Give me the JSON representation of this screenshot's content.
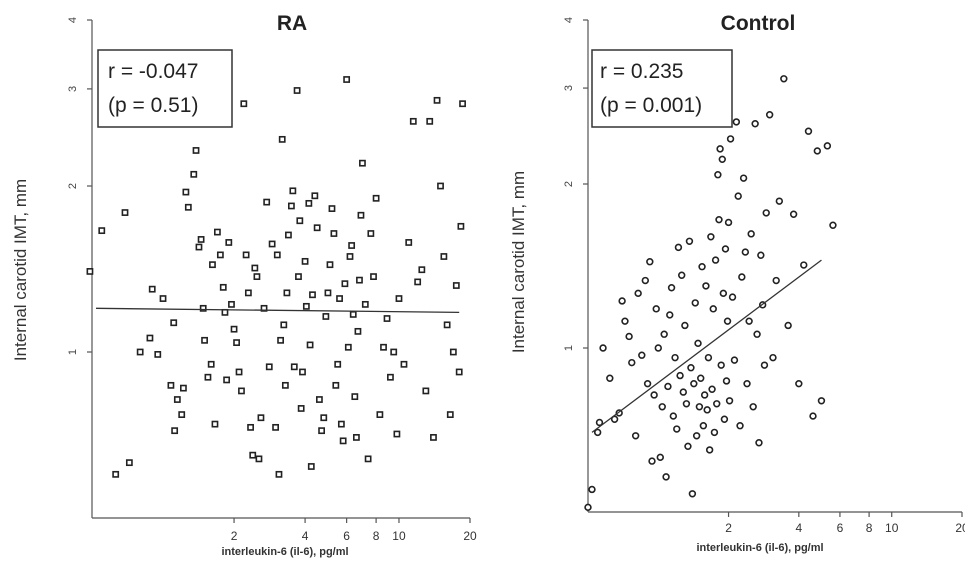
{
  "chart_data": [
    {
      "type": "scatter",
      "title": "RA",
      "xlabel": "interleukin-6 (il-6), pg/ml",
      "ylabel": "Internal carotid IMT, mm",
      "x_scale": "log",
      "y_scale": "log",
      "xlim": [
        0.5,
        20
      ],
      "ylim": [
        0.5,
        4
      ],
      "x_ticks": [
        2,
        4,
        6,
        8,
        10,
        20
      ],
      "x_tick_labels": [
        "2",
        "4",
        "6",
        "8",
        "10",
        "20"
      ],
      "y_ticks": [
        1,
        2,
        3,
        4
      ],
      "y_tick_labels": [
        "1",
        "2",
        "3",
        "4"
      ],
      "annotation": [
        "r = -0.047",
        "(p = 0.51)"
      ],
      "marker": "square",
      "fit_line": {
        "x": [
          0.52,
          18
        ],
        "y": [
          1.2,
          1.18
        ]
      },
      "points": [
        [
          0.49,
          1.4
        ],
        [
          0.55,
          1.66
        ],
        [
          0.69,
          1.79
        ],
        [
          0.63,
          0.6
        ],
        [
          0.72,
          0.63
        ],
        [
          0.8,
          1.0
        ],
        [
          0.9,
          1.3
        ],
        [
          0.88,
          1.06
        ],
        [
          0.95,
          0.99
        ],
        [
          1.0,
          1.25
        ],
        [
          1.08,
          0.87
        ],
        [
          1.11,
          1.13
        ],
        [
          1.15,
          0.82
        ],
        [
          1.12,
          0.72
        ],
        [
          1.2,
          0.77
        ],
        [
          1.22,
          0.86
        ],
        [
          1.25,
          1.95
        ],
        [
          1.28,
          1.83
        ],
        [
          1.35,
          2.1
        ],
        [
          1.38,
          2.32
        ],
        [
          1.42,
          1.55
        ],
        [
          1.45,
          1.6
        ],
        [
          1.48,
          1.2
        ],
        [
          1.5,
          1.05
        ],
        [
          1.55,
          0.9
        ],
        [
          1.6,
          0.95
        ],
        [
          1.62,
          1.44
        ],
        [
          1.66,
          0.74
        ],
        [
          1.7,
          1.65
        ],
        [
          1.75,
          1.5
        ],
        [
          1.8,
          1.31
        ],
        [
          1.83,
          1.18
        ],
        [
          1.86,
          0.89
        ],
        [
          1.9,
          1.58
        ],
        [
          1.95,
          1.22
        ],
        [
          2.0,
          1.1
        ],
        [
          2.05,
          1.04
        ],
        [
          2.1,
          0.92
        ],
        [
          2.15,
          0.85
        ],
        [
          2.2,
          2.82
        ],
        [
          2.25,
          1.5
        ],
        [
          2.3,
          1.28
        ],
        [
          2.35,
          0.73
        ],
        [
          2.4,
          0.65
        ],
        [
          2.45,
          1.42
        ],
        [
          2.5,
          1.37
        ],
        [
          2.55,
          0.64
        ],
        [
          2.6,
          0.76
        ],
        [
          2.68,
          1.2
        ],
        [
          2.75,
          1.87
        ],
        [
          2.82,
          0.94
        ],
        [
          2.9,
          1.57
        ],
        [
          3.0,
          0.73
        ],
        [
          3.05,
          1.5
        ],
        [
          3.1,
          0.6
        ],
        [
          3.15,
          1.05
        ],
        [
          3.2,
          2.43
        ],
        [
          3.25,
          1.12
        ],
        [
          3.3,
          0.87
        ],
        [
          3.35,
          1.28
        ],
        [
          3.4,
          1.63
        ],
        [
          3.5,
          1.84
        ],
        [
          3.55,
          1.96
        ],
        [
          3.6,
          0.94
        ],
        [
          3.7,
          2.98
        ],
        [
          3.75,
          1.37
        ],
        [
          3.8,
          1.73
        ],
        [
          3.85,
          0.79
        ],
        [
          3.9,
          0.92
        ],
        [
          4.0,
          1.46
        ],
        [
          4.05,
          1.21
        ],
        [
          4.15,
          1.86
        ],
        [
          4.2,
          1.03
        ],
        [
          4.25,
          0.62
        ],
        [
          4.3,
          1.27
        ],
        [
          4.4,
          1.92
        ],
        [
          4.5,
          1.68
        ],
        [
          4.6,
          0.82
        ],
        [
          4.7,
          0.72
        ],
        [
          4.8,
          0.76
        ],
        [
          4.9,
          1.16
        ],
        [
          5.0,
          1.28
        ],
        [
          5.1,
          1.44
        ],
        [
          5.2,
          1.82
        ],
        [
          5.3,
          1.64
        ],
        [
          5.4,
          0.87
        ],
        [
          5.5,
          0.95
        ],
        [
          5.6,
          1.25
        ],
        [
          5.7,
          0.74
        ],
        [
          5.8,
          0.69
        ],
        [
          5.9,
          1.33
        ],
        [
          6.0,
          3.12
        ],
        [
          6.1,
          1.02
        ],
        [
          6.2,
          1.49
        ],
        [
          6.3,
          1.56
        ],
        [
          6.4,
          1.17
        ],
        [
          6.5,
          0.83
        ],
        [
          6.6,
          0.7
        ],
        [
          6.7,
          1.09
        ],
        [
          6.8,
          1.35
        ],
        [
          6.9,
          1.77
        ],
        [
          7.0,
          2.2
        ],
        [
          7.2,
          1.22
        ],
        [
          7.4,
          0.64
        ],
        [
          7.6,
          1.64
        ],
        [
          7.8,
          1.37
        ],
        [
          8.0,
          1.9
        ],
        [
          8.3,
          0.77
        ],
        [
          8.6,
          1.02
        ],
        [
          8.9,
          1.15
        ],
        [
          9.2,
          0.9
        ],
        [
          9.5,
          1.0
        ],
        [
          9.8,
          0.71
        ],
        [
          10.0,
          1.25
        ],
        [
          10.5,
          0.95
        ],
        [
          11.0,
          1.58
        ],
        [
          11.5,
          2.62
        ],
        [
          12.0,
          1.34
        ],
        [
          12.5,
          1.41
        ],
        [
          13.0,
          0.85
        ],
        [
          13.5,
          2.62
        ],
        [
          14.0,
          0.7
        ],
        [
          14.5,
          2.86
        ],
        [
          15.0,
          2.0
        ],
        [
          15.5,
          1.49
        ],
        [
          16.0,
          1.12
        ],
        [
          16.5,
          0.77
        ],
        [
          17.0,
          1.0
        ],
        [
          17.5,
          1.32
        ],
        [
          18.0,
          0.92
        ],
        [
          18.3,
          1.69
        ],
        [
          18.6,
          2.82
        ]
      ]
    },
    {
      "type": "scatter",
      "title": "Control",
      "xlabel": "interleukin-6 (il-6), pg/ml",
      "ylabel": "Internal carotid IMT, mm",
      "x_scale": "log",
      "y_scale": "log",
      "xlim": [
        0.5,
        20
      ],
      "ylim": [
        0.5,
        4
      ],
      "x_ticks": [
        2,
        4,
        6,
        8,
        10,
        20
      ],
      "x_tick_labels": [
        "2",
        "4",
        "6",
        "8",
        "10",
        "20"
      ],
      "y_ticks": [
        1,
        2,
        3,
        4
      ],
      "y_tick_labels": [
        "1",
        "2",
        "3",
        "4"
      ],
      "annotation": [
        "r = 0.235",
        "(p = 0.001)"
      ],
      "marker": "circle",
      "fit_line": {
        "x": [
          0.52,
          5.0
        ],
        "y": [
          0.7,
          1.45
        ]
      },
      "points": [
        [
          0.5,
          0.51
        ],
        [
          0.52,
          0.55
        ],
        [
          0.55,
          0.7
        ],
        [
          0.56,
          0.73
        ],
        [
          0.58,
          1.0
        ],
        [
          0.62,
          0.88
        ],
        [
          0.65,
          0.74
        ],
        [
          0.68,
          0.76
        ],
        [
          0.7,
          1.22
        ],
        [
          0.72,
          1.12
        ],
        [
          0.75,
          1.05
        ],
        [
          0.77,
          0.94
        ],
        [
          0.8,
          0.69
        ],
        [
          0.82,
          1.26
        ],
        [
          0.85,
          0.97
        ],
        [
          0.88,
          1.33
        ],
        [
          0.9,
          0.86
        ],
        [
          0.92,
          1.44
        ],
        [
          0.94,
          0.62
        ],
        [
          0.96,
          0.82
        ],
        [
          0.98,
          1.18
        ],
        [
          1.0,
          1.0
        ],
        [
          1.02,
          0.63
        ],
        [
          1.04,
          0.78
        ],
        [
          1.06,
          1.06
        ],
        [
          1.08,
          0.58
        ],
        [
          1.1,
          0.85
        ],
        [
          1.12,
          1.15
        ],
        [
          1.14,
          1.29
        ],
        [
          1.16,
          0.75
        ],
        [
          1.18,
          0.96
        ],
        [
          1.2,
          0.71
        ],
        [
          1.22,
          1.53
        ],
        [
          1.24,
          0.89
        ],
        [
          1.26,
          1.36
        ],
        [
          1.28,
          0.83
        ],
        [
          1.3,
          1.1
        ],
        [
          1.32,
          0.79
        ],
        [
          1.34,
          0.66
        ],
        [
          1.36,
          1.57
        ],
        [
          1.38,
          0.92
        ],
        [
          1.4,
          0.54
        ],
        [
          1.42,
          0.86
        ],
        [
          1.44,
          1.21
        ],
        [
          1.46,
          0.69
        ],
        [
          1.48,
          1.02
        ],
        [
          1.5,
          0.78
        ],
        [
          1.52,
          0.88
        ],
        [
          1.54,
          1.41
        ],
        [
          1.56,
          0.72
        ],
        [
          1.58,
          0.82
        ],
        [
          1.6,
          1.3
        ],
        [
          1.62,
          0.77
        ],
        [
          1.64,
          0.96
        ],
        [
          1.66,
          0.65
        ],
        [
          1.68,
          1.6
        ],
        [
          1.7,
          0.84
        ],
        [
          1.72,
          1.18
        ],
        [
          1.74,
          0.7
        ],
        [
          1.76,
          1.45
        ],
        [
          1.78,
          0.79
        ],
        [
          1.8,
          2.08
        ],
        [
          1.82,
          1.72
        ],
        [
          1.84,
          2.32
        ],
        [
          1.86,
          0.93
        ],
        [
          1.88,
          2.22
        ],
        [
          1.9,
          1.26
        ],
        [
          1.92,
          0.74
        ],
        [
          1.94,
          1.52
        ],
        [
          1.96,
          0.87
        ],
        [
          1.98,
          1.12
        ],
        [
          2.0,
          1.7
        ],
        [
          2.02,
          0.8
        ],
        [
          2.04,
          2.42
        ],
        [
          2.08,
          1.24
        ],
        [
          2.12,
          0.95
        ],
        [
          2.16,
          2.6
        ],
        [
          2.2,
          1.9
        ],
        [
          2.24,
          0.72
        ],
        [
          2.28,
          1.35
        ],
        [
          2.32,
          2.05
        ],
        [
          2.36,
          1.5
        ],
        [
          2.4,
          0.86
        ],
        [
          2.45,
          1.12
        ],
        [
          2.5,
          1.62
        ],
        [
          2.55,
          0.78
        ],
        [
          2.6,
          2.58
        ],
        [
          2.65,
          1.06
        ],
        [
          2.7,
          0.67
        ],
        [
          2.75,
          1.48
        ],
        [
          2.8,
          1.2
        ],
        [
          2.85,
          0.93
        ],
        [
          2.9,
          1.77
        ],
        [
          3.0,
          2.68
        ],
        [
          3.1,
          0.96
        ],
        [
          3.2,
          1.33
        ],
        [
          3.3,
          1.86
        ],
        [
          3.45,
          3.12
        ],
        [
          3.6,
          1.1
        ],
        [
          3.8,
          1.76
        ],
        [
          4.0,
          0.86
        ],
        [
          4.2,
          1.42
        ],
        [
          4.4,
          2.5
        ],
        [
          4.6,
          0.75
        ],
        [
          4.8,
          2.3
        ],
        [
          5.0,
          0.8
        ],
        [
          5.3,
          2.35
        ],
        [
          5.6,
          1.68
        ]
      ]
    }
  ]
}
